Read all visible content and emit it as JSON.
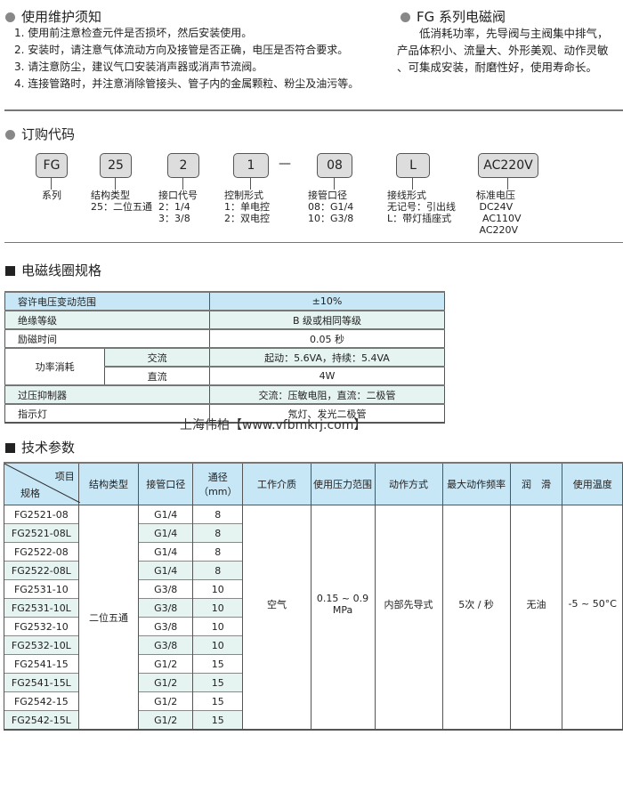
{
  "notes": {
    "title": "使用维护须知",
    "items": [
      "1. 使用前注意检查元件是否损坏，然后安装使用。",
      "2. 安装时，请注意气体流动方向及接管是否正确，电压是否符合要求。",
      "3. 请注意防尘，建议气口安装消声器或消声节流阀。",
      "4. 连接管路时，并注意消除管接头、管子内的金属颗粒、粉尘及油污等。"
    ]
  },
  "series": {
    "title": "FG  系列电磁阀",
    "lines": [
      "　　低消耗功率，先导阀与主阀集中排气，",
      "产品体积小、流量大、外形美观、动作灵敏",
      "、可集成安装，耐磨性好，使用寿命长。"
    ]
  },
  "order": {
    "title": "订购代码",
    "dash": "—",
    "codes": [
      {
        "code": "FG",
        "label": "系列"
      },
      {
        "code": "25",
        "label": "结构类型\n25：二位五通"
      },
      {
        "code": "2",
        "label": "接口代号\n2：1/4\n3：3/8"
      },
      {
        "code": "1",
        "label": "控制形式\n1：单电控\n2：双电控"
      },
      {
        "code": "08",
        "label": "接管口径\n08：G1/4\n10：G3/8"
      },
      {
        "code": "L",
        "label": "接线形式\n无记号：引出线\nL：带灯插座式"
      },
      {
        "code": "AC220V",
        "label": "标准电压\n DC24V\n  AC110V\n AC220V"
      }
    ]
  },
  "coil": {
    "title": "电磁线圈规格",
    "rows": [
      [
        "容许电压变动范围",
        "±10%"
      ],
      [
        "绝缘等级",
        "B 级或相同等级"
      ],
      [
        "励磁时间",
        "0.05 秒"
      ],
      [
        "功率消耗",
        "交流",
        "起动：5.6VA，持续：5.4VA"
      ],
      [
        "直流",
        "4W"
      ],
      [
        "过压抑制器",
        "交流：压敏电阻，直流：二极管"
      ],
      [
        "指示灯",
        "氖灯、发光二极管"
      ]
    ]
  },
  "watermark": "上海伟柏【www.vfbmkrj.com】",
  "tech": {
    "title": "技术参数",
    "corner_top": "项目",
    "corner_bottom": "规格",
    "headers": [
      "结构类型",
      "接管口径",
      "通径（mm）",
      "工作介质",
      "使用压力范围",
      "动作方式",
      "最大动作频率",
      "润　滑",
      "使用温度"
    ],
    "shared": {
      "type": "二位五通",
      "medium": "空气",
      "pressure": "0.15 ~ 0.9\nMPa",
      "action": "内部先导式",
      "freq": "5次 / 秒",
      "lube": "无油",
      "temp": "-5 ~ 50°C"
    },
    "rows": [
      [
        "FG2521-08",
        "G1/4",
        "8"
      ],
      [
        "FG2521-08L",
        "G1/4",
        "8"
      ],
      [
        "FG2522-08",
        "G1/4",
        "8"
      ],
      [
        "FG2522-08L",
        "G1/4",
        "8"
      ],
      [
        "FG2531-10",
        "G3/8",
        "10"
      ],
      [
        "FG2531-10L",
        "G3/8",
        "10"
      ],
      [
        "FG2532-10",
        "G3/8",
        "10"
      ],
      [
        "FG2532-10L",
        "G3/8",
        "10"
      ],
      [
        "FG2541-15",
        "G1/2",
        "15"
      ],
      [
        "FG2541-15L",
        "G1/2",
        "15"
      ],
      [
        "FG2542-15",
        "G1/2",
        "15"
      ],
      [
        "FG2542-15L",
        "G1/2",
        "15"
      ]
    ]
  },
  "colors": {
    "header": "#c7e6f6",
    "alt_row": "#e5f3f1"
  }
}
